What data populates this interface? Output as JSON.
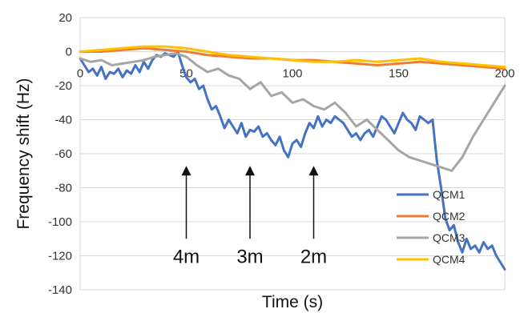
{
  "chart_data": {
    "type": "line",
    "xlabel": "Time (s)",
    "ylabel": "Frequency shift (Hz)",
    "xlim": [
      0,
      200
    ],
    "ylim": [
      -140,
      20
    ],
    "xticks": [
      0,
      50,
      100,
      150,
      200
    ],
    "yticks": [
      20,
      0,
      -20,
      -40,
      -60,
      -80,
      -100,
      -120,
      -140
    ],
    "x_tick_labels": [
      "0",
      "50",
      "100",
      "150",
      "200"
    ],
    "y_tick_labels": [
      "20",
      "0",
      "-20",
      "-40",
      "-60",
      "-80",
      "-100",
      "-120",
      "-140"
    ],
    "grid": "horizontal",
    "legend_position": "bottom-right",
    "series": [
      {
        "name": "QCM1",
        "color": "#4472C4",
        "x": [
          0,
          2,
          4,
          6,
          8,
          10,
          12,
          14,
          16,
          18,
          20,
          22,
          24,
          26,
          28,
          30,
          32,
          34,
          36,
          38,
          40,
          42,
          44,
          46,
          48,
          50,
          52,
          54,
          56,
          58,
          60,
          62,
          64,
          66,
          68,
          70,
          72,
          74,
          76,
          78,
          80,
          82,
          84,
          86,
          88,
          90,
          92,
          94,
          96,
          98,
          100,
          102,
          104,
          106,
          108,
          110,
          112,
          114,
          116,
          118,
          120,
          122,
          124,
          126,
          128,
          130,
          132,
          134,
          136,
          138,
          140,
          142,
          144,
          146,
          148,
          150,
          152,
          154,
          156,
          158,
          160,
          162,
          164,
          166,
          168,
          170,
          172,
          174,
          176,
          178,
          180,
          182,
          184,
          186,
          188,
          190,
          192,
          194,
          196,
          198,
          200
        ],
        "y": [
          -4,
          -8,
          -12,
          -10,
          -14,
          -9,
          -16,
          -12,
          -13,
          -10,
          -15,
          -11,
          -13,
          -8,
          -12,
          -6,
          -10,
          -5,
          -2,
          -3,
          -1,
          -2,
          -3,
          0,
          -8,
          -15,
          -18,
          -16,
          -22,
          -20,
          -28,
          -34,
          -32,
          -38,
          -45,
          -40,
          -44,
          -48,
          -42,
          -50,
          -46,
          -47,
          -44,
          -50,
          -48,
          -52,
          -55,
          -50,
          -58,
          -62,
          -54,
          -52,
          -56,
          -48,
          -42,
          -45,
          -38,
          -44,
          -40,
          -42,
          -38,
          -40,
          -42,
          -46,
          -50,
          -48,
          -52,
          -48,
          -46,
          -50,
          -44,
          -38,
          -40,
          -44,
          -48,
          -42,
          -36,
          -40,
          -42,
          -46,
          -38,
          -40,
          -42,
          -40,
          -64,
          -80,
          -98,
          -105,
          -102,
          -112,
          -118,
          -110,
          -116,
          -114,
          -118,
          -112,
          -116,
          -114,
          -120,
          -124,
          -128
        ]
      },
      {
        "name": "QCM2",
        "color": "#ED7D31",
        "x": [
          0,
          10,
          20,
          30,
          40,
          50,
          60,
          70,
          80,
          90,
          100,
          110,
          120,
          130,
          140,
          150,
          160,
          170,
          180,
          190,
          200
        ],
        "y": [
          0,
          0,
          1,
          2,
          1,
          0,
          -2,
          -3,
          -4,
          -4,
          -5,
          -5,
          -6,
          -7,
          -8,
          -7,
          -6,
          -7,
          -8,
          -9,
          -10
        ]
      },
      {
        "name": "QCM3",
        "color": "#A5A5A5",
        "x": [
          0,
          5,
          10,
          15,
          20,
          25,
          30,
          35,
          40,
          45,
          50,
          55,
          60,
          65,
          70,
          75,
          80,
          85,
          90,
          95,
          100,
          105,
          110,
          115,
          120,
          125,
          130,
          135,
          140,
          145,
          150,
          155,
          160,
          165,
          170,
          175,
          180,
          185,
          190,
          195,
          200
        ],
        "y": [
          -4,
          -6,
          -5,
          -8,
          -7,
          -6,
          -5,
          -3,
          -2,
          -1,
          -3,
          -8,
          -12,
          -10,
          -14,
          -16,
          -22,
          -18,
          -26,
          -24,
          -30,
          -28,
          -32,
          -34,
          -30,
          -36,
          -44,
          -40,
          -46,
          -52,
          -58,
          -62,
          -64,
          -66,
          -68,
          -70,
          -62,
          -50,
          -40,
          -30,
          -20
        ]
      },
      {
        "name": "QCM4",
        "color": "#FFC000",
        "x": [
          0,
          10,
          20,
          30,
          40,
          50,
          60,
          70,
          80,
          90,
          100,
          110,
          120,
          130,
          140,
          150,
          160,
          170,
          180,
          190,
          200
        ],
        "y": [
          0,
          1,
          2,
          3,
          3,
          2,
          0,
          -2,
          -3,
          -4,
          -5,
          -6,
          -6,
          -5,
          -6,
          -5,
          -4,
          -6,
          -7,
          -8,
          -9
        ]
      }
    ],
    "annotations": [
      {
        "text": "4m",
        "x": 50,
        "y_tip": -70,
        "y_tail": -110
      },
      {
        "text": "3m",
        "x": 80,
        "y_tip": -70,
        "y_tail": -110
      },
      {
        "text": "2m",
        "x": 110,
        "y_tip": -70,
        "y_tail": -110
      }
    ]
  }
}
